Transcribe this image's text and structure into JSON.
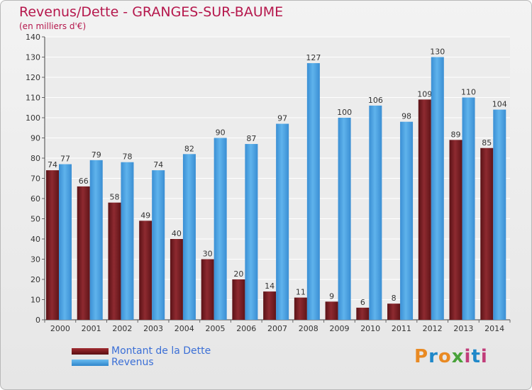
{
  "header": {
    "title": "Revenus/Dette - GRANGES-SUR-BAUME",
    "subtitle": "(en milliers d'€)"
  },
  "logo": {
    "text": "Proxiti",
    "colors": [
      "#e98a23",
      "#1f88c9",
      "#49a23a",
      "#c13d7a"
    ]
  },
  "chart_data": {
    "type": "bar",
    "title": "Revenus/Dette - GRANGES-SUR-BAUME",
    "subtitle": "(en milliers d'€)",
    "categories": [
      "2000",
      "2001",
      "2002",
      "2003",
      "2004",
      "2005",
      "2006",
      "2007",
      "2008",
      "2009",
      "2010",
      "2011",
      "2012",
      "2013",
      "2014"
    ],
    "series": [
      {
        "name": "Montant de la Dette",
        "color": "#7a1d22",
        "values": [
          74,
          66,
          58,
          49,
          40,
          30,
          20,
          14,
          11,
          9,
          6,
          8,
          109,
          89,
          85
        ]
      },
      {
        "name": "Revenus",
        "color": "#4aa3e6",
        "values": [
          77,
          79,
          78,
          74,
          82,
          90,
          87,
          97,
          127,
          100,
          106,
          98,
          130,
          110,
          104
        ]
      }
    ],
    "ylim": [
      0,
      140
    ],
    "yticks": [
      0,
      10,
      20,
      30,
      40,
      50,
      60,
      70,
      80,
      90,
      100,
      110,
      120,
      130,
      140
    ],
    "grid": true,
    "legend": "bottom-left"
  }
}
